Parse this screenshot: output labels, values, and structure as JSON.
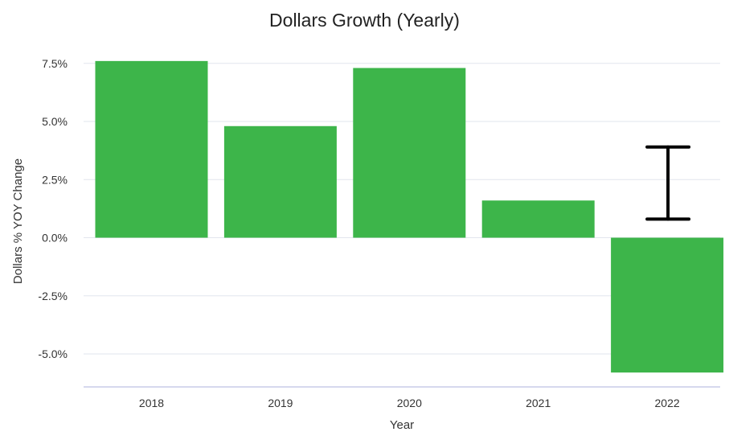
{
  "chart_data": {
    "type": "bar",
    "title": "Dollars Growth (Yearly)",
    "xlabel": "Year",
    "ylabel": "Dollars % YOY Change",
    "categories": [
      "2018",
      "2019",
      "2020",
      "2021",
      "2022"
    ],
    "values": [
      7.6,
      4.8,
      7.3,
      1.6,
      -5.8
    ],
    "error_bar": {
      "category": "2022",
      "low": 0.8,
      "high": 3.9
    },
    "ylim": [
      -6.4,
      7.8
    ],
    "yticks": [
      7.5,
      5.0,
      2.5,
      0.0,
      -2.5,
      -5.0
    ],
    "ytick_labels": [
      "7.5%",
      "5.0%",
      "2.5%",
      "0.0%",
      "-2.5%",
      "-5.0%"
    ],
    "grid": true,
    "legend": "none",
    "colors": {
      "bar": "#3db54a",
      "error_bar": "#000000",
      "grid": "#e2e5ee",
      "axis": "#c9cce8"
    }
  }
}
